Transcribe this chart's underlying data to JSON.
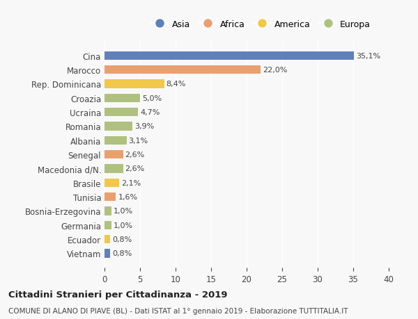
{
  "categories": [
    "Vietnam",
    "Ecuador",
    "Germania",
    "Bosnia-Erzegovina",
    "Tunisia",
    "Brasile",
    "Macedonia d/N.",
    "Senegal",
    "Albania",
    "Romania",
    "Ucraina",
    "Croazia",
    "Rep. Dominicana",
    "Marocco",
    "Cina"
  ],
  "values": [
    0.8,
    0.8,
    1.0,
    1.0,
    1.6,
    2.1,
    2.6,
    2.6,
    3.1,
    3.9,
    4.7,
    5.0,
    8.4,
    22.0,
    35.1
  ],
  "labels": [
    "0,8%",
    "0,8%",
    "1,0%",
    "1,0%",
    "1,6%",
    "2,1%",
    "2,6%",
    "2,6%",
    "3,1%",
    "3,9%",
    "4,7%",
    "5,0%",
    "8,4%",
    "22,0%",
    "35,1%"
  ],
  "colors": [
    "#6080b8",
    "#f0c84a",
    "#b0c080",
    "#b0c080",
    "#e8a070",
    "#f0c84a",
    "#b0c080",
    "#e8a070",
    "#b0c080",
    "#b0c080",
    "#b0c080",
    "#b0c080",
    "#f0c84a",
    "#e8a070",
    "#6080b8"
  ],
  "legend_labels": [
    "Asia",
    "Africa",
    "America",
    "Europa"
  ],
  "legend_colors": [
    "#6080b8",
    "#e8a070",
    "#f0c84a",
    "#b0c080"
  ],
  "title": "Cittadini Stranieri per Cittadinanza - 2019",
  "subtitle": "COMUNE DI ALANO DI PIAVE (BL) - Dati ISTAT al 1° gennaio 2019 - Elaborazione TUTTITALIA.IT",
  "xlim": [
    0,
    40
  ],
  "xticks": [
    0,
    5,
    10,
    15,
    20,
    25,
    30,
    35,
    40
  ],
  "bg_color": "#f8f8f8",
  "bar_height": 0.6
}
